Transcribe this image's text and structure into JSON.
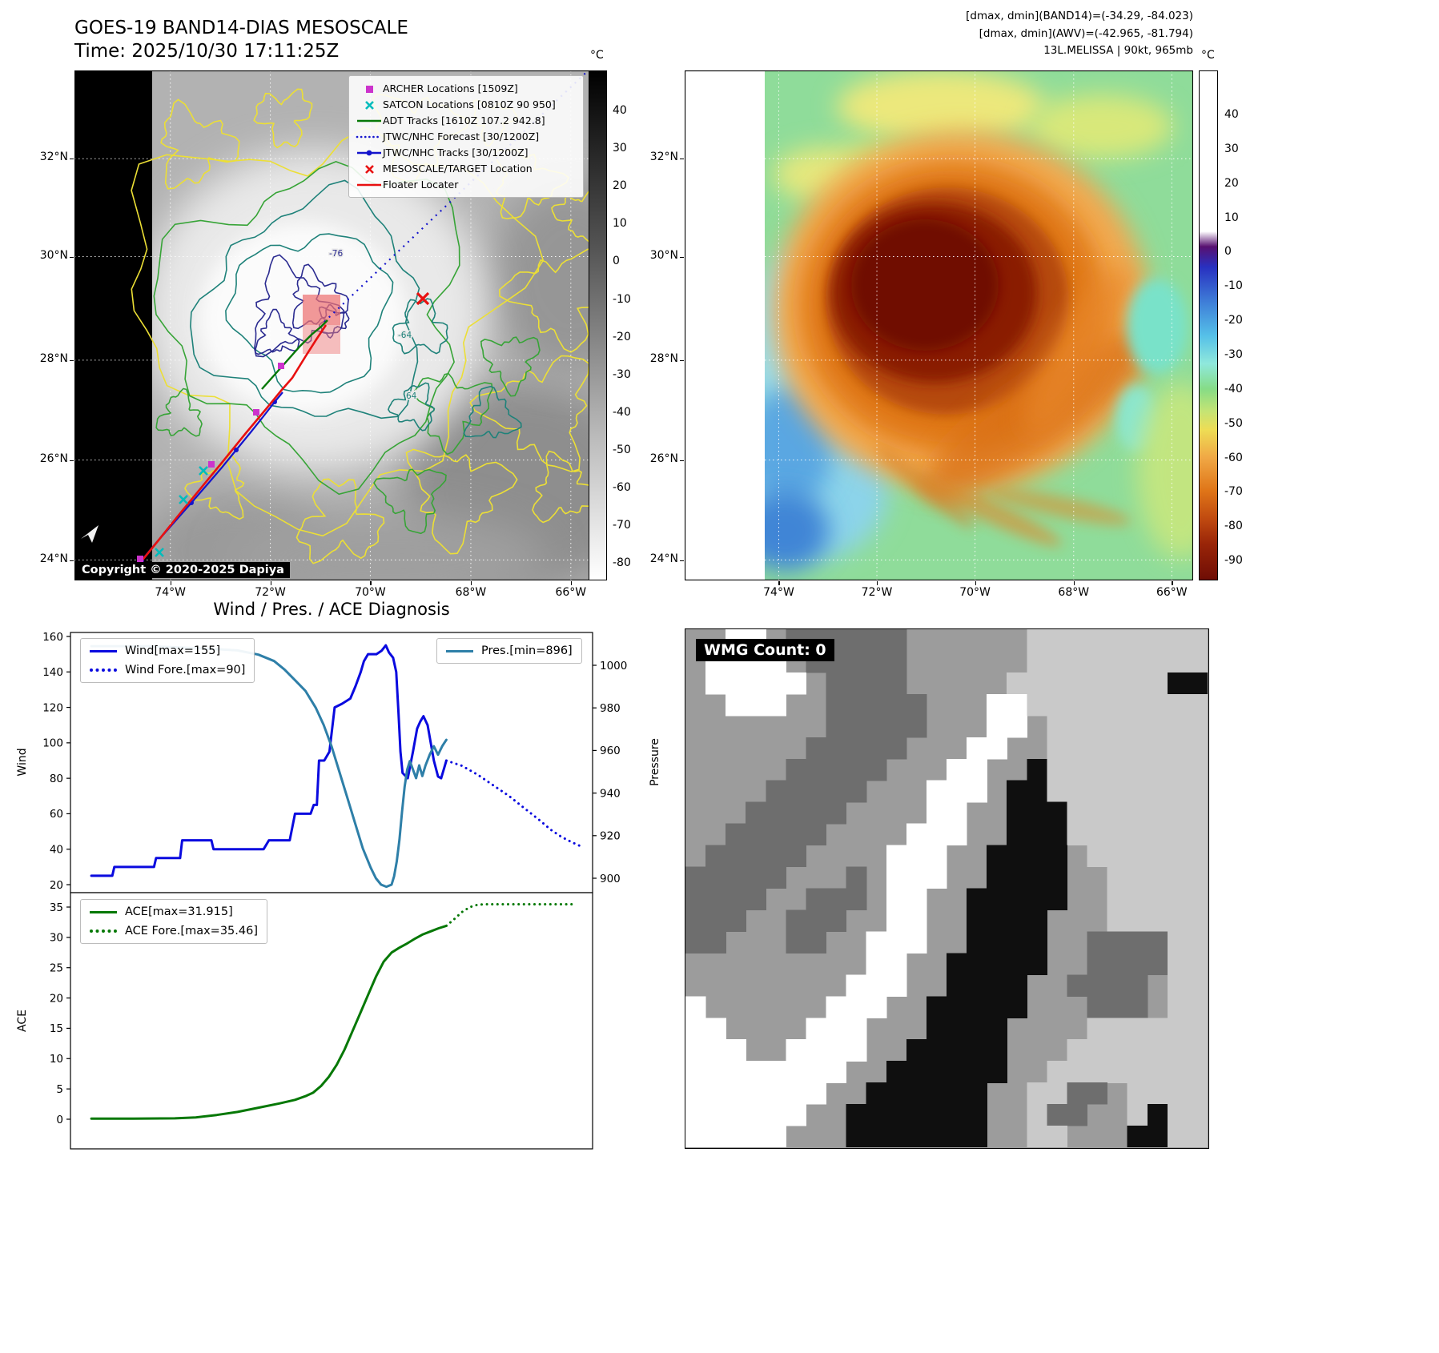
{
  "band14_panel": {
    "title": "GOES-19 BAND14-DIAS MESOSCALE",
    "time_line": "Time: 2025/10/30 17:11:25Z",
    "copyright": "Copyright © 2020-2025 Dapiya",
    "legend": [
      {
        "label": "ARCHER Locations [1509Z]",
        "marker": "square",
        "color": "#cc33cc"
      },
      {
        "label": "SATCON Locations [0810Z 90 950]",
        "marker": "x",
        "color": "#00bcbc"
      },
      {
        "label": "ADT Tracks [1610Z 107.2 942.8]",
        "marker": "line",
        "color": "#067806"
      },
      {
        "label": "JTWC/NHC Forecast [30/1200Z]",
        "marker": "dotted-line",
        "color": "#1414cc"
      },
      {
        "label": "JTWC/NHC Tracks [30/1200Z]",
        "marker": "line-dot",
        "color": "#1414cc"
      },
      {
        "label": "MESOSCALE/TARGET Location",
        "marker": "x",
        "color": "#e81010"
      },
      {
        "label": "Floater Locater",
        "marker": "line",
        "color": "#e81010"
      }
    ],
    "lat_ticks": [
      "32°N",
      "30°N",
      "28°N",
      "26°N",
      "24°N"
    ],
    "lon_ticks": [
      "74°W",
      "72°W",
      "70°W",
      "68°W",
      "66°W"
    ],
    "colorbar": {
      "unit": "°C",
      "ticks": [
        "40",
        "30",
        "20",
        "10",
        "0",
        "-10",
        "-20",
        "-30",
        "-40",
        "-50",
        "-60",
        "-70",
        "-80"
      ]
    },
    "contour_labels": [
      "-76",
      "-64",
      "64"
    ]
  },
  "awv_panel": {
    "header_lines": [
      "[dmax, dmin](BAND14)=(-34.29, -84.023)",
      "[dmax, dmin](AWV)=(-42.965, -81.794)",
      "13L.MELISSA | 90kt, 965mb"
    ],
    "lat_ticks": [
      "32°N",
      "30°N",
      "28°N",
      "26°N",
      "24°N"
    ],
    "lon_ticks": [
      "74°W",
      "72°W",
      "70°W",
      "68°W",
      "66°W"
    ],
    "colorbar": {
      "unit": "°C",
      "ticks": [
        "40",
        "30",
        "20",
        "10",
        "0",
        "-10",
        "-20",
        "-30",
        "-40",
        "-50",
        "-60",
        "-70",
        "-80",
        "-90"
      ]
    }
  },
  "chart_data": [
    {
      "type": "line",
      "title": "Wind / Pres. / ACE Diagnosis",
      "ylabel_left": "Wind",
      "ylabel_right": "Pressure",
      "ylim_left": [
        20,
        160
      ],
      "ylim_right": [
        896,
        1010
      ],
      "yticks_left": [
        160,
        140,
        120,
        100,
        80,
        60,
        40,
        20
      ],
      "yticks_right": [
        1000,
        980,
        960,
        940,
        920,
        900
      ],
      "legend_position": "upper left / upper right",
      "grid": false,
      "series": [
        {
          "name": "Wind[max=155]",
          "color": "#0a0adf",
          "style": "solid",
          "axis": "left",
          "points": [
            [
              4,
              25
            ],
            [
              8,
              25
            ],
            [
              8.4,
              30
            ],
            [
              13,
              30
            ],
            [
              16,
              30
            ],
            [
              16.4,
              35
            ],
            [
              21,
              35
            ],
            [
              21.4,
              45
            ],
            [
              27,
              45
            ],
            [
              27.4,
              40
            ],
            [
              37,
              40
            ],
            [
              38,
              45
            ],
            [
              42,
              45
            ],
            [
              43,
              60
            ],
            [
              46,
              60
            ],
            [
              46.6,
              65
            ],
            [
              47.2,
              65
            ],
            [
              47.6,
              90
            ],
            [
              48.6,
              90
            ],
            [
              49.6,
              95
            ],
            [
              50.6,
              120
            ],
            [
              52,
              122
            ],
            [
              53.6,
              125
            ],
            [
              54.6,
              132
            ],
            [
              55.6,
              140
            ],
            [
              56.2,
              146
            ],
            [
              57,
              150
            ],
            [
              58.6,
              150
            ],
            [
              59.6,
              152
            ],
            [
              60.4,
              155
            ],
            [
              61,
              151
            ],
            [
              61.8,
              148
            ],
            [
              62.4,
              140
            ],
            [
              62.8,
              118
            ],
            [
              63.2,
              95
            ],
            [
              63.6,
              83
            ],
            [
              64.6,
              80
            ],
            [
              65.6,
              95
            ],
            [
              66.4,
              108
            ],
            [
              67,
              112
            ],
            [
              67.6,
              115
            ],
            [
              68.4,
              110
            ],
            [
              69,
              100
            ],
            [
              69.6,
              90
            ],
            [
              70.4,
              81
            ],
            [
              71,
              80
            ],
            [
              71.6,
              86
            ],
            [
              72,
              90
            ]
          ]
        },
        {
          "name": "Wind Fore.[max=90]",
          "color": "#0a0adf",
          "style": "dotted",
          "axis": "left",
          "points": [
            [
              72,
              90
            ],
            [
              75,
              87
            ],
            [
              78,
              82
            ],
            [
              81,
              76
            ],
            [
              84,
              70
            ],
            [
              87,
              63
            ],
            [
              90,
              56
            ],
            [
              92,
              51
            ],
            [
              94,
              47
            ],
            [
              96,
              44
            ],
            [
              97.5,
              42
            ]
          ]
        },
        {
          "name": "Pres.[min=896]",
          "color": "#2e7fa8",
          "style": "solid",
          "axis": "right",
          "points": [
            [
              4,
              1009
            ],
            [
              15,
              1009
            ],
            [
              25,
              1008
            ],
            [
              32,
              1007
            ],
            [
              36,
              1005
            ],
            [
              39,
              1002
            ],
            [
              41,
              998
            ],
            [
              43,
              993
            ],
            [
              45,
              988
            ],
            [
              47,
              980
            ],
            [
              48.5,
              972
            ],
            [
              50,
              962
            ],
            [
              51.5,
              950
            ],
            [
              53,
              938
            ],
            [
              54.5,
              926
            ],
            [
              56,
              914
            ],
            [
              57.5,
              905
            ],
            [
              58.5,
              900
            ],
            [
              59.5,
              897
            ],
            [
              60.5,
              896
            ],
            [
              61.5,
              897
            ],
            [
              62,
              901
            ],
            [
              62.5,
              908
            ],
            [
              63,
              918
            ],
            [
              63.5,
              931
            ],
            [
              64,
              943
            ],
            [
              64.5,
              951
            ],
            [
              65,
              955
            ],
            [
              65.6,
              951
            ],
            [
              66.2,
              947
            ],
            [
              66.8,
              953
            ],
            [
              67.4,
              948
            ],
            [
              68,
              953
            ],
            [
              68.8,
              958
            ],
            [
              69.6,
              962
            ],
            [
              70.4,
              958
            ],
            [
              71.2,
              962
            ],
            [
              72,
              965
            ]
          ]
        }
      ]
    },
    {
      "type": "line",
      "ylabel_left": "ACE",
      "ylim_left": [
        0,
        35.46
      ],
      "yticks_left": [
        35,
        30,
        25,
        20,
        15,
        10,
        5,
        0
      ],
      "grid": false,
      "series": [
        {
          "name": "ACE[max=31.915]",
          "color": "#067806",
          "style": "solid",
          "axis": "left",
          "points": [
            [
              4,
              0.1
            ],
            [
              12,
              0.1
            ],
            [
              20,
              0.15
            ],
            [
              24,
              0.3
            ],
            [
              28,
              0.7
            ],
            [
              32,
              1.2
            ],
            [
              36,
              1.9
            ],
            [
              40,
              2.6
            ],
            [
              43,
              3.2
            ],
            [
              45,
              3.8
            ],
            [
              46.5,
              4.4
            ],
            [
              48,
              5.5
            ],
            [
              49.5,
              7
            ],
            [
              51,
              9
            ],
            [
              52.5,
              11.5
            ],
            [
              54,
              14.5
            ],
            [
              55.5,
              17.5
            ],
            [
              57,
              20.5
            ],
            [
              58.5,
              23.5
            ],
            [
              60,
              26
            ],
            [
              61.5,
              27.5
            ],
            [
              63,
              28.3
            ],
            [
              64.5,
              29
            ],
            [
              66,
              29.8
            ],
            [
              67.5,
              30.5
            ],
            [
              69,
              31
            ],
            [
              70.5,
              31.5
            ],
            [
              72,
              31.915
            ]
          ]
        },
        {
          "name": "ACE Fore.[max=35.46]",
          "color": "#067806",
          "style": "dotted",
          "axis": "left",
          "points": [
            [
              72,
              31.915
            ],
            [
              73.5,
              33
            ],
            [
              75,
              34.2
            ],
            [
              76.5,
              35
            ],
            [
              78,
              35.4
            ],
            [
              79.5,
              35.46
            ],
            [
              82,
              35.46
            ],
            [
              85,
              35.46
            ],
            [
              88,
              35.46
            ],
            [
              91,
              35.46
            ],
            [
              94,
              35.46
            ],
            [
              96.5,
              35.46
            ]
          ]
        }
      ]
    }
  ],
  "wmg_panel": {
    "badge": "WMG Count: 0",
    "palette": {
      "w": "#ffffff",
      "l": "#c9c9c9",
      ".": "#9c9c9c",
      "d": "#6e6e6e",
      "b": "#0f0f0f"
    },
    "grid": [
      "..ww.dddddd......lllllllll",
      ".wwww.ddddd......lllllllll",
      ".wwwww.dddd.....llllllllbb",
      "..www..ddddd...wwlllllllll",
      ".......ddddd...ww.llllllll",
      "......ddddd...ww..llllllll",
      ".....ddddd...ww..bllllllll",
      "....ddddd...www.bbllllllll",
      "...ddddd....ww..bbblllllll",
      "..ddddd....www..bbblllllll",
      ".ddddd....www..bbbb.llllll",
      "ddddd...d.www..bbbb..lllll",
      "dddd..ddd.ww..bbbbb..lllll",
      "ddd..ddd..ww..bbbb...lllll",
      "dd...dd..www..bbbb..ddddll",
      ".........ww..bbbbb..ddddll",
      "........www..bbbb..dddd.ll",
      "w......www..bbbbb...ddd.ll",
      "ww....www...bbbb....llllll",
      "www..wwww..bbbbb...lllllll",
      "wwwwwwww..bbbbbb..llllllll",
      "wwwwwww..bbbbbb..lldd.llll",
      "wwwwww..bbbbbbb..ldd..lbll",
      "wwwww...bbbbbbb..ll...bbll"
    ]
  }
}
